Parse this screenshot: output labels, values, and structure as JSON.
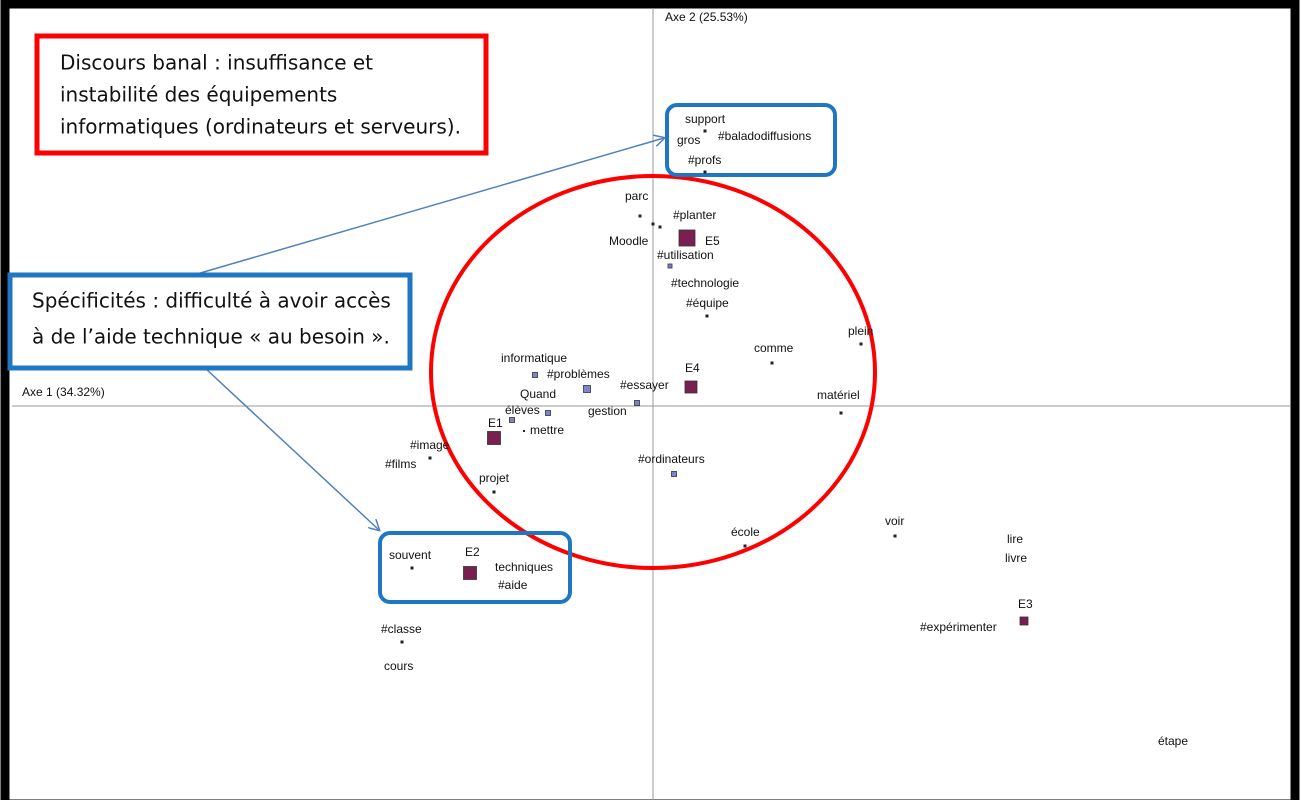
{
  "axes": {
    "x_label": "Axe 1 (34.32%)",
    "y_label": "Axe 2 (25.53%)"
  },
  "points": [
    {
      "label": "support"
    },
    {
      "label": "gros"
    },
    {
      "label": "#baladodiffusions"
    },
    {
      "label": "#profs"
    },
    {
      "label": "parc"
    },
    {
      "label": "#planter"
    },
    {
      "label": "Moodle"
    },
    {
      "label": "E5"
    },
    {
      "label": "#utilisation"
    },
    {
      "label": "#technologie"
    },
    {
      "label": "#équipe"
    },
    {
      "label": "plein"
    },
    {
      "label": "comme"
    },
    {
      "label": "informatique"
    },
    {
      "label": "#problèmes"
    },
    {
      "label": "E4"
    },
    {
      "label": "#essayer"
    },
    {
      "label": "Quand"
    },
    {
      "label": "matériel"
    },
    {
      "label": "gestion"
    },
    {
      "label": "élèves"
    },
    {
      "label": "E1"
    },
    {
      "label": "mettre"
    },
    {
      "label": "#image"
    },
    {
      "label": "#films"
    },
    {
      "label": "#ordinateurs"
    },
    {
      "label": "projet"
    },
    {
      "label": "école"
    },
    {
      "label": "voir"
    },
    {
      "label": "lire"
    },
    {
      "label": "livre"
    },
    {
      "label": "souvent"
    },
    {
      "label": "E2"
    },
    {
      "label": "techniques"
    },
    {
      "label": "#aide"
    },
    {
      "label": "E3"
    },
    {
      "label": "#expérimenter"
    },
    {
      "label": "#classe"
    },
    {
      "label": "cours"
    },
    {
      "label": "étape"
    }
  ],
  "annotations": [
    {
      "lines": [
        "Discours banal : insuffisance et",
        "instabilité des équipements",
        "informatiques (ordinateurs et serveurs)."
      ]
    },
    {
      "lines": [
        "Spécificités : difficulté à avoir accès",
        "à de l’aide technique « au besoin »."
      ]
    }
  ]
}
